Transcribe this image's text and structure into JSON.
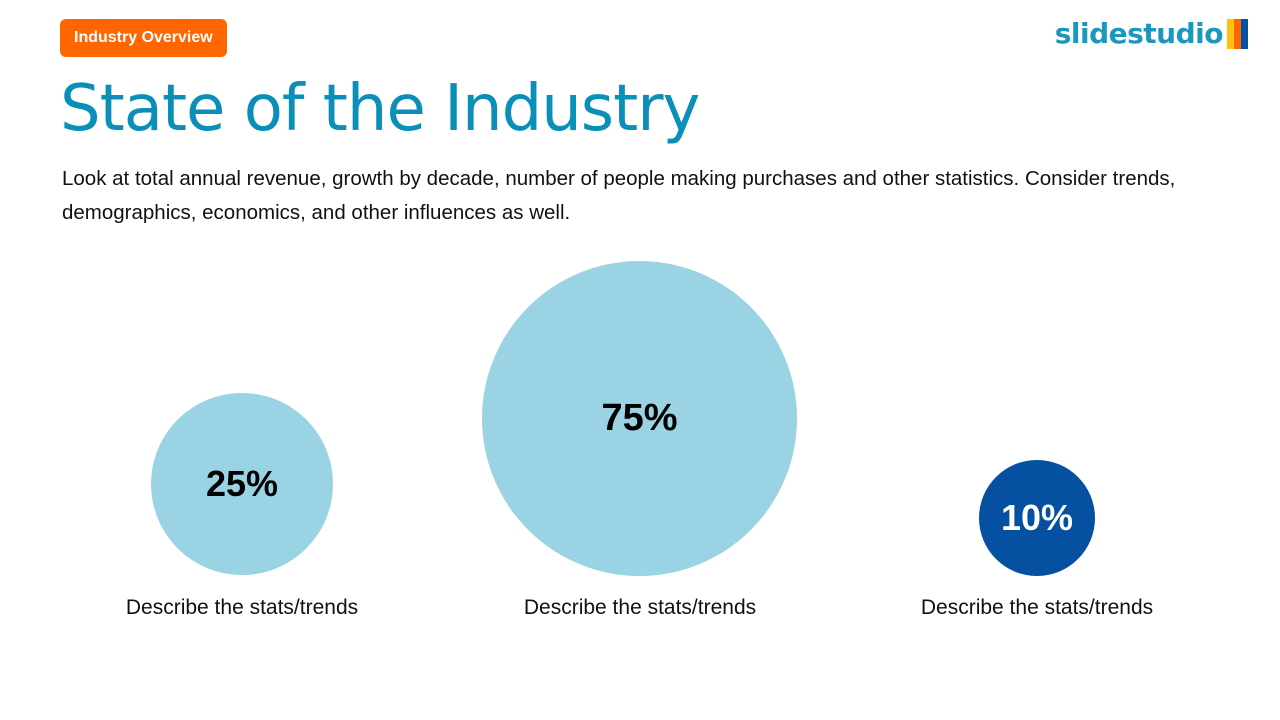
{
  "header": {
    "badge": "Industry Overview",
    "logo": "slidestudio",
    "logo_colors": [
      "#ffc20e",
      "#ff6600",
      "#0550a0"
    ]
  },
  "title": "State of the Industry",
  "description": "Look at total annual revenue, growth by decade, number of people making purchases and other statistics. Consider trends, demographics, economics, and other influences as well.",
  "stats": [
    {
      "value": "25%",
      "caption": "Describe the stats/trends",
      "color": "#9ad3e3"
    },
    {
      "value": "75%",
      "caption": "Describe the stats/trends",
      "color": "#9ad3e3"
    },
    {
      "value": "10%",
      "caption": "Describe the stats/trends",
      "color": "#0550a0"
    }
  ]
}
